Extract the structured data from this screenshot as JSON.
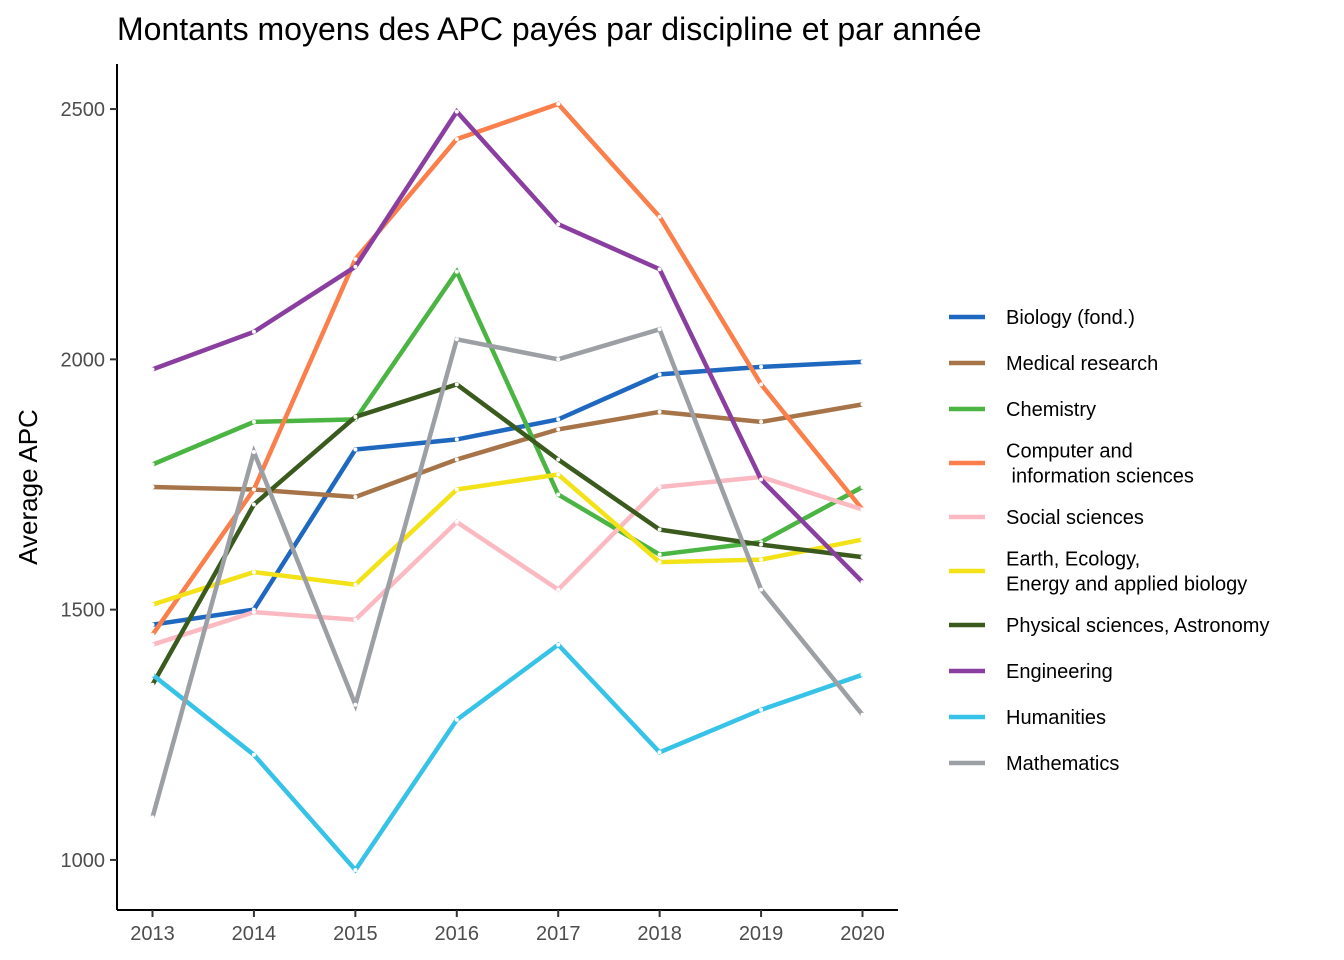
{
  "chart_data": {
    "type": "line",
    "title": "Montants moyens des APC payés par discipline et par année",
    "xlabel": "",
    "ylabel": "Average APC",
    "x": [
      2013,
      2014,
      2015,
      2016,
      2017,
      2018,
      2019,
      2020
    ],
    "xlim": [
      2012.65,
      2020.35
    ],
    "ylim": [
      900,
      2590
    ],
    "yticks": [
      1000,
      1500,
      2000,
      2500
    ],
    "grid": false,
    "legend": "right",
    "series": [
      {
        "name": "Biology (fond.)",
        "color": "#1f68c0",
        "values": [
          1470,
          1500,
          1820,
          1840,
          1880,
          1970,
          1985,
          1995
        ]
      },
      {
        "name": "Medical research",
        "color": "#a67448",
        "values": [
          1745,
          1740,
          1725,
          1800,
          1860,
          1895,
          1875,
          1910
        ]
      },
      {
        "name": "Chemistry",
        "color": "#4bb543",
        "values": [
          1790,
          1875,
          1880,
          2175,
          1730,
          1610,
          1635,
          1745
        ]
      },
      {
        "name": "Computer and\n information sciences",
        "color": "#fa7f4a",
        "values": [
          1450,
          1740,
          2200,
          2440,
          2510,
          2285,
          1950,
          1700
        ]
      },
      {
        "name": "Social sciences",
        "color": "#fbb9c2",
        "values": [
          1430,
          1495,
          1480,
          1675,
          1540,
          1745,
          1765,
          1700
        ]
      },
      {
        "name": "Earth, Ecology,\nEnergy and applied biology",
        "color": "#f3e217",
        "values": [
          1510,
          1575,
          1550,
          1740,
          1770,
          1595,
          1600,
          1640
        ]
      },
      {
        "name": "Physical sciences, Astronomy",
        "color": "#3b5a1e",
        "values": [
          1350,
          1710,
          1885,
          1950,
          1800,
          1660,
          1630,
          1605
        ]
      },
      {
        "name": "Engineering",
        "color": "#8a3fa0",
        "values": [
          1980,
          2055,
          2185,
          2495,
          2270,
          2180,
          1760,
          1555
        ]
      },
      {
        "name": "Humanities",
        "color": "#37c3e8",
        "values": [
          1370,
          1210,
          980,
          1280,
          1430,
          1215,
          1300,
          1370
        ]
      },
      {
        "name": "Mathematics",
        "color": "#9c9fa3",
        "values": [
          1085,
          1815,
          1310,
          2040,
          2000,
          2060,
          1540,
          1290
        ]
      }
    ]
  }
}
